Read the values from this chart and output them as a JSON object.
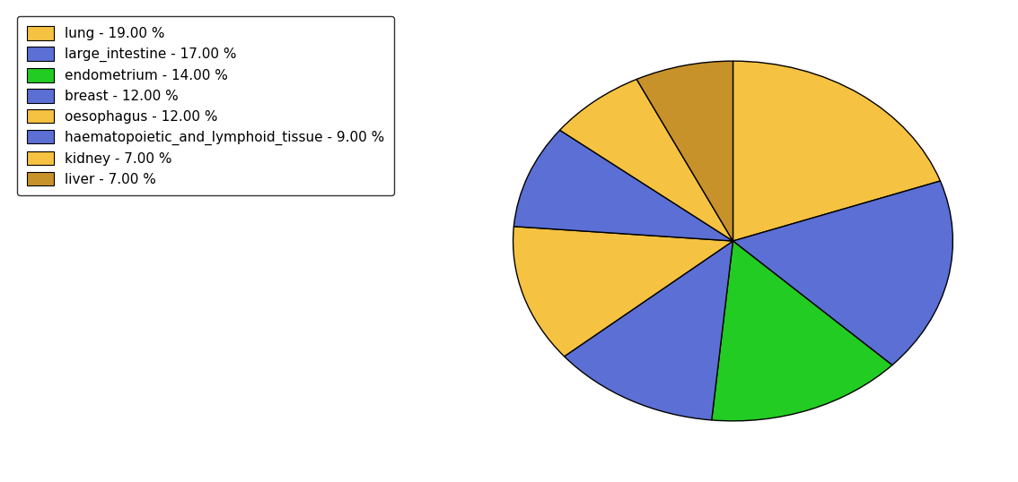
{
  "labels": [
    "lung",
    "large_intestine",
    "endometrium",
    "breast",
    "oesophagus",
    "haematopoietic_and_lymphoid_tissue",
    "kidney",
    "liver"
  ],
  "values": [
    19,
    17,
    14,
    12,
    12,
    9,
    7,
    7
  ],
  "colors": [
    "#f5c242",
    "#5b6fd4",
    "#22cc22",
    "#5b6fd4",
    "#f5c242",
    "#5b6fd4",
    "#f5c242",
    "#c8922a"
  ],
  "legend_labels": [
    "lung - 19.00 %",
    "large_intestine - 17.00 %",
    "endometrium - 14.00 %",
    "breast - 12.00 %",
    "oesophagus - 12.00 %",
    "haematopoietic_and_lymphoid_tissue - 9.00 %",
    "kidney - 7.00 %",
    "liver - 7.00 %"
  ],
  "legend_colors": [
    "#f5c242",
    "#5b6fd4",
    "#22cc22",
    "#5b6fd4",
    "#f5c242",
    "#5b6fd4",
    "#f5c242",
    "#c8922a"
  ],
  "startangle": 90,
  "figure_width": 11.34,
  "figure_height": 5.38,
  "dpi": 100
}
